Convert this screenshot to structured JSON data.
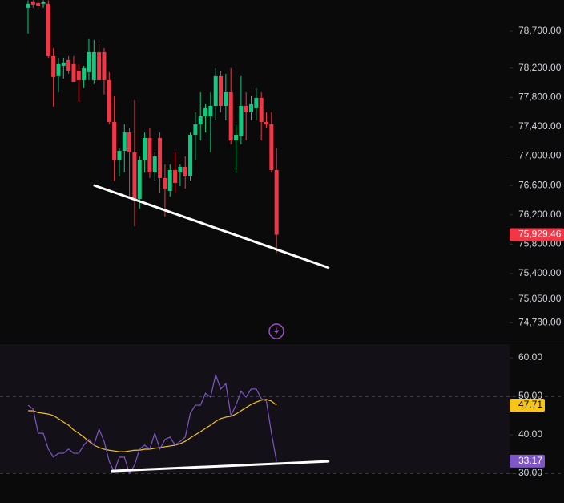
{
  "chart_data": [
    {
      "type": "candlestick",
      "open": [
        79017,
        79104,
        79083,
        79072,
        79072,
        78361,
        78088,
        78230,
        78307,
        78252,
        78164,
        78033,
        78143,
        78033,
        78416,
        78416,
        78033,
        77465,
        76940,
        77071,
        77323,
        77050,
        76416,
        76940,
        77246,
        76776,
        77246,
        76700,
        76525,
        76809,
        76776,
        76853,
        76722,
        77290,
        77432,
        77541,
        77541,
        77683,
        78088,
        77683,
        77869,
        77214,
        77268,
        77683,
        77596,
        77651,
        77793,
        77465,
        77432,
        76809
      ],
      "high": [
        79120,
        79120,
        79120,
        79120,
        79120,
        78470,
        78339,
        78339,
        78361,
        78361,
        78252,
        78230,
        78602,
        78580,
        78525,
        78470,
        78143,
        77815,
        77104,
        77432,
        77377,
        77760,
        76995,
        77323,
        77377,
        77050,
        77323,
        76886,
        76886,
        77050,
        76886,
        76995,
        77323,
        77596,
        77869,
        77705,
        77869,
        78197,
        78164,
        78121,
        78197,
        77432,
        78088,
        77869,
        77815,
        77924,
        77869,
        77596,
        77596,
        77104
      ],
      "low": [
        78667,
        79017,
        78995,
        79017,
        78339,
        77673,
        77869,
        78055,
        78121,
        78033,
        77738,
        77924,
        78033,
        77979,
        78033,
        77837,
        77432,
        76667,
        76722,
        76776,
        76448,
        76044,
        76284,
        76776,
        76700,
        76667,
        76503,
        76175,
        76448,
        76503,
        76590,
        76558,
        76667,
        76940,
        77214,
        77323,
        77050,
        77487,
        77596,
        77487,
        77159,
        76776,
        77159,
        77214,
        77487,
        77487,
        77214,
        77377,
        76776,
        75683
      ],
      "close": [
        79072,
        79061,
        79039,
        79093,
        78361,
        78077,
        78252,
        78274,
        78164,
        78011,
        78033,
        78197,
        78416,
        78416,
        78033,
        78033,
        77465,
        76940,
        77071,
        77323,
        77050,
        76416,
        76940,
        77246,
        76776,
        76995,
        76700,
        76558,
        76809,
        76634,
        76853,
        76722,
        77290,
        77432,
        77541,
        77651,
        77683,
        78088,
        77683,
        77869,
        77214,
        77290,
        77683,
        77596,
        77705,
        77793,
        77465,
        77432,
        76809,
        75929.46
      ],
      "up_color": "#0ecb81",
      "down_color": "#f23645",
      "ylim": [
        74460,
        79125
      ],
      "yticks": [
        {
          "value": 78700,
          "label": "78,700.00"
        },
        {
          "value": 78200,
          "label": "78,200.00"
        },
        {
          "value": 77800,
          "label": "77,800.00"
        },
        {
          "value": 77400,
          "label": "77,400.00"
        },
        {
          "value": 77000,
          "label": "77,000.00"
        },
        {
          "value": 76600,
          "label": "76,600.00"
        },
        {
          "value": 76200,
          "label": "76,200.00"
        },
        {
          "value": 75800,
          "label": "75,800.00"
        },
        {
          "value": 75400,
          "label": "75,400.00"
        },
        {
          "value": 75050,
          "label": "75,050.00"
        },
        {
          "value": 74730,
          "label": "74,730.00"
        }
      ],
      "last_price": {
        "value": 75929.46,
        "label": "75,929.46"
      },
      "trendline": {
        "x": [
          13.1,
          59.2
        ],
        "values": [
          76600,
          75480
        ],
        "color": "#ffffff"
      }
    },
    {
      "type": "line",
      "series": [
        {
          "color": "#7e57c2",
          "values": [
            47.7,
            46.7,
            40.4,
            40.4,
            36.3,
            34.2,
            35.2,
            35.2,
            36.3,
            35.2,
            35.2,
            37.3,
            38.8,
            37.3,
            41.5,
            38.3,
            33.1,
            30.4,
            34.2,
            34.2,
            30.0,
            32.1,
            36.3,
            37.3,
            36.3,
            40.4,
            36.3,
            38.8,
            39.4,
            37.3,
            38.3,
            39.4,
            45.6,
            47.7,
            47.7,
            50.8,
            49.8,
            55.6,
            51.9,
            53.3,
            45.0,
            47.7,
            51.3,
            49.8,
            51.9,
            51.9,
            49.4,
            48.75,
            40.4,
            33.17
          ],
          "label_text": "#ffffff"
        },
        {
          "color": "#f5c518",
          "values": [
            46.25,
            46.25,
            45.8,
            45.6,
            45.4,
            45.0,
            44.2,
            43.3,
            42.5,
            41.25,
            40.4,
            39.4,
            38.3,
            37.3,
            36.7,
            36.25,
            36.0,
            35.8,
            35.6,
            35.6,
            35.8,
            36.0,
            36.0,
            36.25,
            36.25,
            36.5,
            36.7,
            36.9,
            37.1,
            37.3,
            37.7,
            38.3,
            39.2,
            40.0,
            40.8,
            41.7,
            42.5,
            43.5,
            44.2,
            44.6,
            44.8,
            45.4,
            46.25,
            47.1,
            47.9,
            48.5,
            49.0,
            49.2,
            48.75,
            47.71
          ],
          "label_text": "#000000"
        }
      ],
      "ylim": [
        22.3,
        63.75
      ],
      "yticks": [
        {
          "value": 60,
          "label": "60.00"
        },
        {
          "value": 50,
          "label": "50.00"
        },
        {
          "value": 40,
          "label": "40.00"
        },
        {
          "value": 30,
          "label": "30.00"
        }
      ],
      "levels": [
        50,
        30
      ],
      "trendline": {
        "x": [
          16.6,
          59.2
        ],
        "values": [
          30.6,
          33.1
        ],
        "color": "#ffffff"
      }
    }
  ]
}
